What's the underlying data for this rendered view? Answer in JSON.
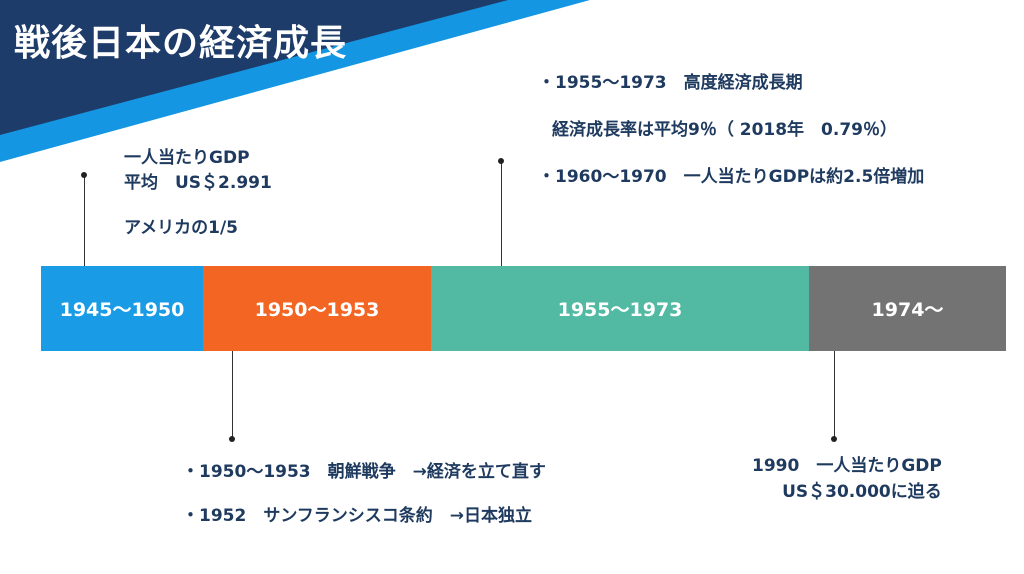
{
  "title": "戦後日本の経済成長",
  "colors": {
    "navy": "#1d3c6a",
    "bright_blue": "#1496e2",
    "segment_1": "#1a9be6",
    "segment_2": "#f26522",
    "segment_3": "#52b9a3",
    "segment_4": "#737373"
  },
  "timeline": {
    "segments": [
      {
        "label": "1945～1950"
      },
      {
        "label": "1950～1953"
      },
      {
        "label": "1955～1973"
      },
      {
        "label": "1974～"
      }
    ]
  },
  "notes": {
    "above_1": {
      "line1": "一人当たりGDP",
      "line2": "平均　US＄2.991",
      "line3": "アメリカの1/5"
    },
    "above_3": {
      "line1": "・1955～1973　高度経済成長期",
      "line2": "経済成長率は平均9％（ 2018年　0.79％）",
      "line3": "・1960～1970　一人当たりGDPは約2.5倍増加"
    },
    "below_2": {
      "line1": "・1950～1953　朝鮮戦争　→経済を立て直す",
      "line2": "・1952　サンフランシスコ条約　→日本独立"
    },
    "below_4": {
      "line1": "1990　一人当たりGDP",
      "line2": "US＄30.000に迫る"
    }
  }
}
